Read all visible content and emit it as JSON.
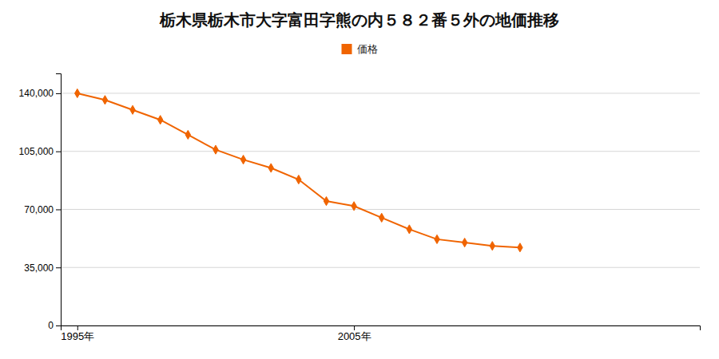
{
  "chart_data": {
    "type": "line",
    "title": "栃木県栃木市大字富田字熊の内５８２番５外の地価推移",
    "x": [
      1995,
      1996,
      1997,
      1998,
      1999,
      2000,
      2001,
      2002,
      2003,
      2004,
      2005,
      2006,
      2007,
      2008,
      2009,
      2010,
      2011
    ],
    "series": [
      {
        "name": "価格",
        "color": "#f06400",
        "marker": "diamond",
        "values": [
          140000,
          136000,
          130000,
          124000,
          115000,
          106000,
          100000,
          95000,
          88000,
          75000,
          72000,
          65000,
          58000,
          52000,
          50000,
          48000,
          47000
        ]
      }
    ],
    "xlim": [
      1994.4,
      2017.5
    ],
    "xticks": [
      {
        "value": 1995,
        "label": "1995年"
      },
      {
        "value": 2005,
        "label": "2005年"
      }
    ],
    "ylim": [
      0,
      152000
    ],
    "yticks": [
      0,
      {
        "value": 35000,
        "label": "35,000"
      },
      {
        "value": 70000,
        "label": "70,000"
      },
      {
        "value": 105000,
        "label": "105,000"
      },
      {
        "value": 140000,
        "label": "140,000"
      }
    ],
    "grid": "y",
    "legend": "top"
  }
}
